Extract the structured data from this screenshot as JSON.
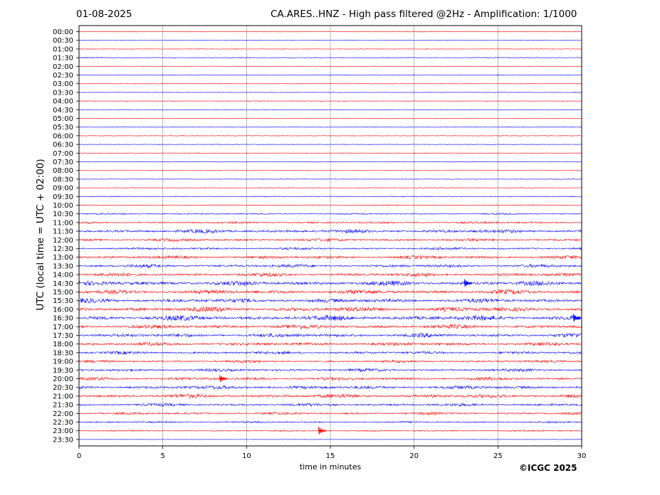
{
  "header": {
    "date": "01-08-2025",
    "title": "CA.ARES..HNZ - High pass filtered @2Hz - Amplification: 1/1000"
  },
  "credit": "©ICGC 2025",
  "colors": {
    "red": "#ff0000",
    "blue": "#0000ff",
    "grid": "#000000"
  },
  "chart_data": {
    "type": "line",
    "title": "CA.ARES..HNZ - High pass filtered @2Hz - Amplification: 1/1000",
    "xlabel": "time in minutes",
    "ylabel": "UTC (local time = UTC + 02:00)",
    "xlim": [
      0,
      30
    ],
    "x_ticks": [
      "0",
      "5",
      "10",
      "15",
      "20",
      "25",
      "30"
    ],
    "grid": "vertical dotted lines at 5-minute intervals",
    "rows": [
      "00:00",
      "00:30",
      "01:00",
      "01:30",
      "02:00",
      "02:30",
      "03:00",
      "03:30",
      "04:00",
      "04:30",
      "05:00",
      "05:30",
      "06:00",
      "06:30",
      "07:00",
      "07:30",
      "08:00",
      "08:30",
      "09:00",
      "09:30",
      "10:00",
      "10:30",
      "11:00",
      "11:30",
      "12:00",
      "12:30",
      "13:00",
      "13:30",
      "14:00",
      "14:30",
      "15:00",
      "15:30",
      "16:00",
      "16:30",
      "17:00",
      "17:30",
      "18:00",
      "18:30",
      "19:00",
      "19:30",
      "20:00",
      "20:30",
      "21:00",
      "21:30",
      "22:00",
      "22:30",
      "23:00",
      "23:30"
    ],
    "row_colors": "alternating red / blue",
    "activity_level": [
      0.05,
      0.03,
      0.03,
      0.06,
      0.03,
      0.03,
      0.03,
      0.03,
      0.03,
      0.03,
      0.03,
      0.03,
      0.03,
      0.03,
      0.04,
      0.04,
      0.03,
      0.04,
      0.05,
      0.08,
      0.08,
      0.15,
      0.25,
      0.45,
      0.35,
      0.3,
      0.4,
      0.4,
      0.45,
      0.6,
      0.55,
      0.55,
      0.65,
      0.65,
      0.5,
      0.5,
      0.45,
      0.35,
      0.3,
      0.35,
      0.4,
      0.45,
      0.5,
      0.35,
      0.3,
      0.2,
      0.15,
      0.0
    ],
    "events": [
      {
        "row": "20:00",
        "minute": 8.4,
        "amplitude": 0.9
      },
      {
        "row": "23:00",
        "minute": 14.3,
        "amplitude": 1.0
      },
      {
        "row": "14:30",
        "minute": 23.0,
        "amplitude": 1.0
      },
      {
        "row": "16:30",
        "minute": 29.5,
        "amplitude": 1.0
      }
    ]
  }
}
